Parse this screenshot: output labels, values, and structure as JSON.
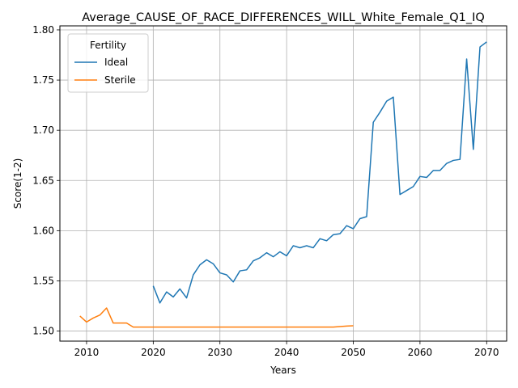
{
  "chart_data": {
    "type": "line",
    "title": "Average_CAUSE_OF_RACE_DIFFERENCES_WILL_White_Female_Q1_IQ",
    "xlabel": "Years",
    "ylabel": "Score(1-2)",
    "xlim": [
      2006,
      2073
    ],
    "ylim": [
      1.49,
      1.804
    ],
    "xticks": [
      2010,
      2020,
      2030,
      2040,
      2050,
      2060,
      2070
    ],
    "xtick_labels": [
      "2010",
      "2020",
      "2030",
      "2040",
      "2050",
      "2060",
      "2070"
    ],
    "yticks": [
      1.5,
      1.55,
      1.6,
      1.65,
      1.7,
      1.75,
      1.8
    ],
    "ytick_labels": [
      "1.50",
      "1.55",
      "1.60",
      "1.65",
      "1.70",
      "1.75",
      "1.80"
    ],
    "grid": true,
    "legend": {
      "title": "Fertility",
      "placement": "top-left"
    },
    "series": [
      {
        "name": "Ideal",
        "color": "#1f77b4",
        "x": [
          2020,
          2021,
          2022,
          2023,
          2024,
          2025,
          2026,
          2027,
          2028,
          2029,
          2030,
          2031,
          2032,
          2033,
          2034,
          2035,
          2036,
          2037,
          2038,
          2039,
          2040,
          2041,
          2042,
          2043,
          2044,
          2045,
          2046,
          2047,
          2048,
          2049,
          2050,
          2051,
          2052,
          2053,
          2054,
          2055,
          2056,
          2057,
          2058,
          2059,
          2060,
          2061,
          2062,
          2063,
          2064,
          2065,
          2066,
          2067,
          2068,
          2069,
          2070
        ],
        "y": [
          1.545,
          1.528,
          1.539,
          1.534,
          1.542,
          1.533,
          1.556,
          1.566,
          1.571,
          1.567,
          1.558,
          1.556,
          1.549,
          1.56,
          1.561,
          1.57,
          1.573,
          1.578,
          1.574,
          1.579,
          1.575,
          1.585,
          1.583,
          1.585,
          1.583,
          1.592,
          1.59,
          1.596,
          1.597,
          1.605,
          1.602,
          1.612,
          1.614,
          1.708,
          1.718,
          1.729,
          1.733,
          1.636,
          1.64,
          1.644,
          1.654,
          1.653,
          1.66,
          1.66,
          1.667,
          1.67,
          1.671,
          1.771,
          1.681,
          1.783,
          1.788
        ]
      },
      {
        "name": "Sterile",
        "color": "#ff7f0e",
        "x": [
          2009,
          2010,
          2011,
          2012,
          2013,
          2014,
          2015,
          2016,
          2017,
          2018,
          2019,
          2020,
          2021,
          2022,
          2023,
          2024,
          2025,
          2026,
          2027,
          2028,
          2029,
          2030,
          2031,
          2032,
          2033,
          2034,
          2035,
          2036,
          2037,
          2038,
          2039,
          2040,
          2041,
          2042,
          2043,
          2044,
          2045,
          2046,
          2047,
          2048,
          2049,
          2050
        ],
        "y": [
          1.515,
          1.509,
          1.513,
          1.516,
          1.523,
          1.508,
          1.508,
          1.508,
          1.504,
          1.504,
          1.504,
          1.504,
          1.504,
          1.504,
          1.504,
          1.504,
          1.504,
          1.504,
          1.504,
          1.504,
          1.504,
          1.504,
          1.504,
          1.504,
          1.504,
          1.504,
          1.504,
          1.504,
          1.504,
          1.504,
          1.504,
          1.504,
          1.504,
          1.504,
          1.504,
          1.504,
          1.504,
          1.504,
          1.504,
          1.5045,
          1.505,
          1.5053
        ]
      }
    ]
  }
}
